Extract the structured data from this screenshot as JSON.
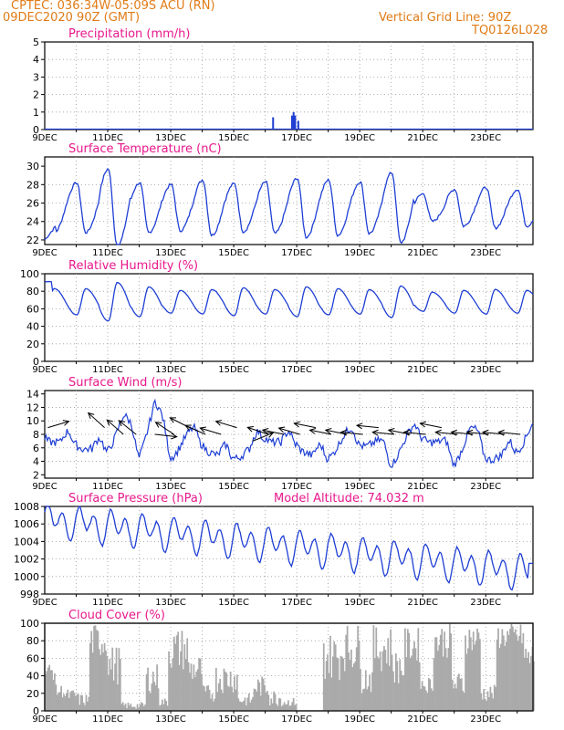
{
  "header": {
    "line1": "CPTEC:   036:34W-05:09S   ACU (RN)",
    "line2": "09DEC2020 90Z (GMT)",
    "grid_note": "Vertical Grid Line: 90Z",
    "code": "TQ0126L028"
  },
  "colors": {
    "header": "#e07b17",
    "title": "#e8188c",
    "line": "#1f3fd4",
    "cloud": "#aaaaaa",
    "grid": "#9a9a9a"
  },
  "date_labels": [
    "9DEC",
    "11DEC",
    "13DEC",
    "15DEC",
    "17DEC",
    "19DEC",
    "21DEC",
    "23DEC"
  ],
  "chart_data": [
    {
      "type": "bar",
      "title": "Precipitation (mm/h)",
      "ylim": [
        0,
        5
      ],
      "yticks": [
        "0",
        "1",
        "2",
        "3",
        "4",
        "5"
      ],
      "x_days": [
        7.25,
        7.85,
        7.9,
        7.95,
        8.05
      ],
      "values": [
        0.7,
        0.8,
        1.0,
        0.8,
        0.5
      ]
    },
    {
      "type": "line",
      "title": "Surface Temperature (nC)",
      "ylim": [
        21.5,
        31
      ],
      "yticks": [
        "22",
        "24",
        "26",
        "28",
        "30"
      ],
      "base": 25.5,
      "amplitude": [
        2.7,
        2.7,
        4.2,
        2.7,
        2.5,
        3.0,
        2.6,
        2.8,
        3.2,
        3.0,
        2.8,
        3.8,
        1.5,
        2.0,
        2.2,
        2.0,
        2.5
      ],
      "first_min": 22.0
    },
    {
      "type": "line",
      "title": "Relative Humidity (%)",
      "ylim": [
        0,
        100
      ],
      "yticks": [
        "0",
        "20",
        "40",
        "60",
        "80",
        "100"
      ],
      "base": 68,
      "amplitude": [
        15,
        15,
        22,
        17,
        13,
        14,
        16,
        14,
        17,
        15,
        14,
        18,
        11,
        13,
        14,
        13,
        15
      ],
      "first_value": 91
    },
    {
      "type": "line",
      "title": "Surface Wind (m/s)",
      "ylim": [
        1.5,
        14.5
      ],
      "yticks": [
        "2",
        "4",
        "6",
        "8",
        "10",
        "12",
        "14"
      ],
      "speed_days": [
        0,
        0.5,
        1,
        1.5,
        2,
        2.5,
        3,
        3.5,
        4,
        4.5,
        5,
        5.5,
        6,
        6.5,
        7,
        7.5,
        8,
        8.5,
        9,
        9.5,
        10,
        10.5,
        11,
        11.5,
        12,
        12.5,
        13,
        13.5,
        14,
        14.5,
        15,
        15.5
      ],
      "speed": [
        9,
        6,
        8,
        5,
        7,
        10,
        6,
        12,
        6,
        7,
        8,
        4,
        6,
        5,
        9,
        6,
        8,
        4,
        6,
        7,
        8,
        6,
        5,
        7,
        9,
        6,
        5,
        8,
        6,
        4,
        7,
        9
      ],
      "arrow_days": [
        0.1,
        1.9,
        2.5,
        2.9,
        3.5,
        4.1,
        4.6,
        5.1,
        5.6,
        6.1,
        6.6,
        7.1,
        7.6,
        8.1,
        8.6,
        9.1,
        9.6,
        10.1,
        10.6,
        11.1,
        11.6,
        12.1,
        12.6,
        13.1,
        13.6,
        14.1,
        14.6,
        15.1
      ],
      "arrow_speed": [
        9,
        9,
        8,
        8,
        8,
        8,
        9,
        8,
        8,
        9,
        7,
        8,
        8,
        8,
        9,
        8,
        8,
        8,
        9,
        8,
        8,
        8,
        9,
        8,
        8,
        8,
        8,
        8
      ],
      "arrow_dx": [
        1.0,
        -1.0,
        -0.8,
        -1.0,
        0.9,
        -0.9,
        -1.0,
        -0.9,
        -1.0,
        -1.0,
        1.0,
        -0.9,
        -1.0,
        -1.0,
        -1.0,
        -1.0,
        -1.0,
        -1.0,
        -1.0,
        -1.0,
        -1.0,
        -1.0,
        -1.0,
        -1.0,
        -1.0,
        -1.0,
        -1.0,
        -1.0
      ],
      "arrow_dy": [
        -0.3,
        -0.9,
        -0.7,
        -0.8,
        0.1,
        -0.6,
        -0.5,
        -0.4,
        -0.3,
        -0.3,
        -0.4,
        -0.3,
        -0.2,
        -0.3,
        -0.2,
        -0.2,
        -0.2,
        -0.1,
        -0.1,
        -0.1,
        -0.2,
        -0.1,
        -0.2,
        -0.1,
        -0.1,
        -0.1,
        -0.1,
        -0.1
      ]
    },
    {
      "type": "line",
      "title": "Surface Pressure (hPa)",
      "annotation": "Model Altitude: 74.032 m",
      "ylim": [
        998,
        1008
      ],
      "yticks": [
        "998",
        "1000",
        "1002",
        "1004",
        "1006",
        "1008"
      ],
      "start": 1006.5,
      "end": 1000.5,
      "amplitude": 1.8,
      "last_value": 1001.5
    },
    {
      "type": "area",
      "title": "Cloud Cover (%)",
      "ylim": [
        0,
        100
      ],
      "yticks": [
        "0",
        "20",
        "40",
        "60",
        "80",
        "100"
      ],
      "segments": [
        [
          0.0,
          0.3,
          35,
          55
        ],
        [
          0.3,
          0.6,
          15,
          30
        ],
        [
          0.6,
          1.0,
          10,
          25
        ],
        [
          1.0,
          1.4,
          5,
          20
        ],
        [
          1.4,
          2.0,
          60,
          100
        ],
        [
          2.0,
          2.4,
          30,
          75
        ],
        [
          2.4,
          3.2,
          2,
          10
        ],
        [
          3.2,
          3.6,
          20,
          55
        ],
        [
          3.6,
          3.9,
          5,
          15
        ],
        [
          3.9,
          4.5,
          45,
          95
        ],
        [
          4.5,
          5.0,
          30,
          65
        ],
        [
          5.0,
          5.4,
          10,
          30
        ],
        [
          5.4,
          6.1,
          20,
          55
        ],
        [
          6.1,
          6.6,
          5,
          20
        ],
        [
          6.6,
          7.1,
          15,
          40
        ],
        [
          7.1,
          7.5,
          5,
          25
        ],
        [
          7.5,
          8.0,
          5,
          15
        ],
        [
          8.0,
          8.8,
          0,
          0
        ],
        [
          8.8,
          9.4,
          35,
          90
        ],
        [
          9.4,
          10.0,
          45,
          100
        ],
        [
          10.0,
          10.4,
          20,
          55
        ],
        [
          10.4,
          11.0,
          45,
          98
        ],
        [
          11.0,
          11.4,
          30,
          70
        ],
        [
          11.4,
          11.9,
          55,
          95
        ],
        [
          11.9,
          12.3,
          20,
          40
        ],
        [
          12.3,
          12.9,
          60,
          100
        ],
        [
          12.9,
          13.3,
          15,
          45
        ],
        [
          13.3,
          13.8,
          65,
          100
        ],
        [
          13.8,
          14.3,
          10,
          30
        ],
        [
          14.3,
          15.2,
          70,
          100
        ],
        [
          15.2,
          15.5,
          40,
          80
        ]
      ]
    }
  ]
}
